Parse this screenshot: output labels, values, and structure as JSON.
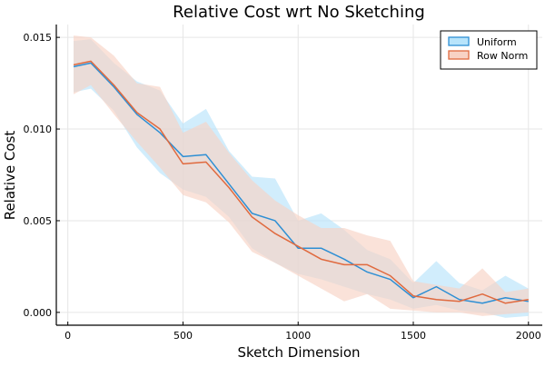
{
  "chart_data": {
    "type": "line",
    "title": "Relative Cost wrt No Sketching",
    "xlabel": "Sketch Dimension",
    "ylabel": "Relative Cost",
    "xlim": [
      -50,
      2060
    ],
    "ylim": [
      -0.0007,
      0.0157
    ],
    "xticks": [
      0,
      500,
      1000,
      1500,
      2000
    ],
    "xtick_labels": [
      "0",
      "500",
      "1000",
      "1500",
      "2000"
    ],
    "yticks": [
      0.0,
      0.005,
      0.01,
      0.015
    ],
    "ytick_labels": [
      "0.000",
      "0.005",
      "0.010",
      "0.015"
    ],
    "grid": true,
    "legend_position": "top-right",
    "x": [
      25,
      100,
      200,
      300,
      400,
      500,
      600,
      700,
      800,
      900,
      1000,
      1100,
      1200,
      1300,
      1400,
      1500,
      1600,
      1700,
      1800,
      1900,
      2000
    ],
    "series": [
      {
        "name": "Uniform",
        "color": "#2e8fd4",
        "fill": "#b8e4fb",
        "values": [
          0.0134,
          0.0136,
          0.0123,
          0.0108,
          0.0098,
          0.0085,
          0.0086,
          0.007,
          0.0054,
          0.005,
          0.0035,
          0.0035,
          0.0029,
          0.0022,
          0.0018,
          0.0008,
          0.0014,
          0.0007,
          0.0005,
          0.0008,
          0.0006
        ],
        "lower": [
          0.012,
          0.0122,
          0.011,
          0.009,
          0.0076,
          0.0067,
          0.0063,
          0.0052,
          0.0035,
          0.0027,
          0.0021,
          0.0018,
          0.0014,
          0.001,
          0.0007,
          0.0002,
          0.0004,
          0.0001,
          0.0,
          -0.0003,
          -0.0002
        ],
        "upper": [
          0.0148,
          0.0149,
          0.0136,
          0.0126,
          0.0121,
          0.0103,
          0.0111,
          0.0088,
          0.0074,
          0.0073,
          0.005,
          0.0054,
          0.0045,
          0.0034,
          0.0029,
          0.0016,
          0.0028,
          0.0016,
          0.0012,
          0.002,
          0.0013
        ]
      },
      {
        "name": "Row Norm",
        "color": "#e06a3f",
        "fill": "#f8d2c4",
        "values": [
          0.0135,
          0.0137,
          0.0124,
          0.0109,
          0.01,
          0.0081,
          0.0082,
          0.0068,
          0.0052,
          0.0043,
          0.0036,
          0.0029,
          0.0026,
          0.0026,
          0.002,
          0.0009,
          0.0007,
          0.0006,
          0.001,
          0.0005,
          0.0007
        ],
        "lower": [
          0.0119,
          0.0124,
          0.0108,
          0.0093,
          0.0079,
          0.0064,
          0.006,
          0.0049,
          0.0033,
          0.0027,
          0.002,
          0.0013,
          0.0006,
          0.001,
          0.0002,
          0.0001,
          0.0,
          0.0,
          -0.0002,
          -0.0001,
          0.0
        ],
        "upper": [
          0.0151,
          0.015,
          0.014,
          0.0125,
          0.0123,
          0.0098,
          0.0104,
          0.0087,
          0.0072,
          0.0061,
          0.0053,
          0.0046,
          0.0046,
          0.0042,
          0.0039,
          0.0017,
          0.0015,
          0.0013,
          0.0024,
          0.0011,
          0.0013
        ]
      }
    ]
  }
}
